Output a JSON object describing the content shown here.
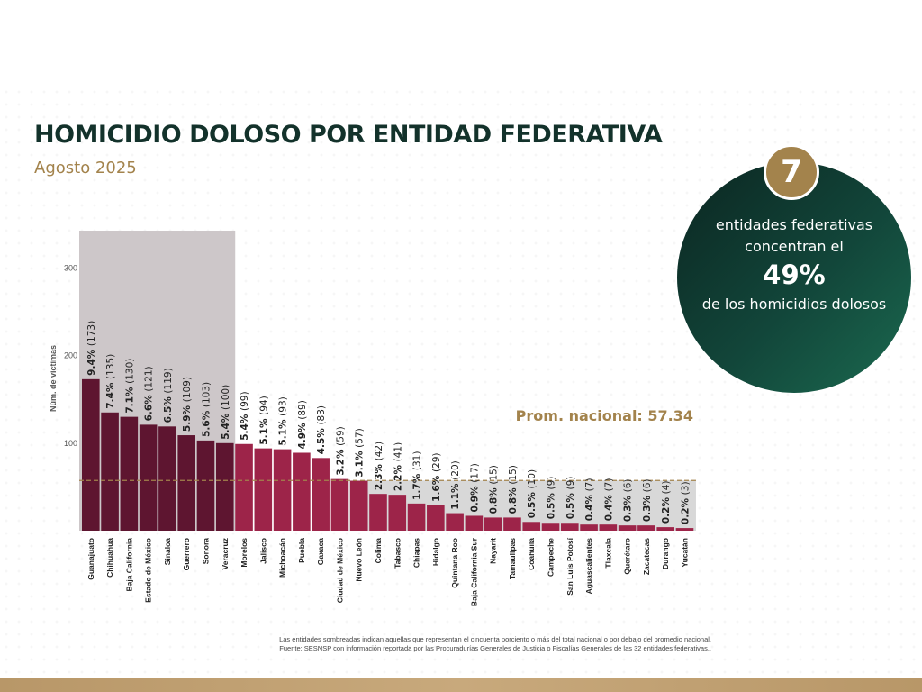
{
  "header": {
    "title": "HOMICIDIO DOLOSO POR ENTIDAD FEDERATIVA",
    "subtitle": "Agosto 2025"
  },
  "highlight": {
    "number": "7",
    "line1": "entidades federativas",
    "line2": "concentran el",
    "percent": "49%",
    "line3": "de los homicidios dolosos"
  },
  "colors": {
    "dark_bar": "#5e1530",
    "light_bar": "#9d2449",
    "shade_top": "#cdc7c9",
    "shade_avg": "#d8d8d8",
    "gold": "#a3834c",
    "dark_green": "#13322b"
  },
  "chart_data": {
    "type": "bar",
    "ylabel": "Núm. de víctimas",
    "ylim": [
      0,
      340
    ],
    "yticks": [
      100,
      200,
      300
    ],
    "average": 57.34,
    "average_label": "Prom. nacional: 57.34",
    "shaded_top_count": 8,
    "categories": [
      "Guanajuato",
      "Chihuahua",
      "Baja California",
      "Estado de México",
      "Sinaloa",
      "Guerrero",
      "Sonora",
      "Veracruz",
      "Morelos",
      "Jalisco",
      "Michoacán",
      "Puebla",
      "Oaxaca",
      "Ciudad de México",
      "Nuevo León",
      "Colima",
      "Tabasco",
      "Chiapas",
      "Hidalgo",
      "Quintana Roo",
      "Baja California Sur",
      "Nayarit",
      "Tamaulipas",
      "Coahuila",
      "Campeche",
      "San Luis Potosí",
      "Aguascalientes",
      "Tlaxcala",
      "Querétaro",
      "Zacatecas",
      "Durango",
      "Yucatán"
    ],
    "values": [
      173,
      135,
      130,
      121,
      119,
      109,
      103,
      100,
      99,
      94,
      93,
      89,
      83,
      59,
      57,
      42,
      41,
      31,
      29,
      20,
      17,
      15,
      15,
      10,
      9,
      9,
      7,
      7,
      6,
      6,
      4,
      3
    ],
    "pct_labels": [
      "9.4%",
      "7.4%",
      "7.1%",
      "6.6%",
      "6.5%",
      "5.9%",
      "5.6%",
      "5.4%",
      "5.4%",
      "5.1%",
      "5.1%",
      "4.9%",
      "4.5%",
      "3.2%",
      "3.1%",
      "2.3%",
      "2.2%",
      "1.7%",
      "1.6%",
      "1.1%",
      "0.9%",
      "0.8%",
      "0.8%",
      "0.5%",
      "0.5%",
      "0.5%",
      "0.4%",
      "0.4%",
      "0.3%",
      "0.3%",
      "0.2%",
      "0.2%"
    ],
    "count_labels": [
      "(173)",
      "(135)",
      "(130)",
      "(121)",
      "(119)",
      "(109)",
      "(103)",
      "(100)",
      "(99)",
      "(94)",
      "(93)",
      "(89)",
      "(83)",
      "(59)",
      "(57)",
      "(42)",
      "(41)",
      "(31)",
      "(29)",
      "(20)",
      "(17)",
      "(15)",
      "(15)",
      "(10)",
      "(9)",
      "(9)",
      "(7)",
      "(7)",
      "(6)",
      "(6)",
      "(4)",
      "(3)"
    ]
  },
  "footnotes": {
    "line1": "Las entidades sombreadas indican aquellas que representan el cincuenta porciento o más del total nacional o por debajo del promedio nacional.",
    "line2": "Fuente: SESNSP con información reportada por las Procuradurías Generales de Justicia o Fiscalías Generales de las 32 entidades federativas.."
  }
}
